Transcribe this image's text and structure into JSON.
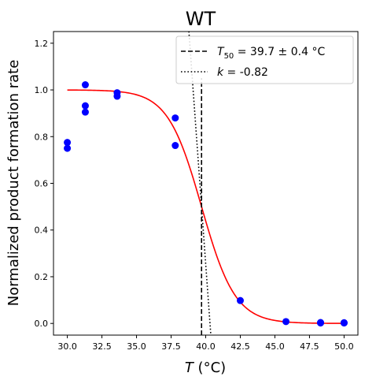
{
  "chart_data": {
    "type": "scatter",
    "title": "WT",
    "xlabel": {
      "italic": "T",
      "rest": " (°C)"
    },
    "ylabel": "Normalized product formation rate",
    "xlim": [
      29.0,
      51.0
    ],
    "ylim": [
      -0.05,
      1.25
    ],
    "xticks": [
      30.0,
      32.5,
      35.0,
      37.5,
      40.0,
      42.5,
      45.0,
      47.5,
      50.0
    ],
    "xtick_labels": [
      "30.0",
      "32.5",
      "35.0",
      "37.5",
      "40.0",
      "42.5",
      "45.0",
      "47.5",
      "50.0"
    ],
    "yticks": [
      0.0,
      0.2,
      0.4,
      0.6,
      0.8,
      1.0,
      1.2
    ],
    "ytick_labels": [
      "0.0",
      "0.2",
      "0.4",
      "0.6",
      "0.8",
      "1.0",
      "1.2"
    ],
    "grid": false,
    "legend_position": "top-right",
    "points": {
      "color": "#0000ff",
      "x": [
        30.0,
        30.0,
        31.3,
        31.3,
        31.3,
        33.6,
        33.6,
        37.8,
        37.8,
        42.5,
        45.8,
        48.3,
        48.3,
        50.0,
        50.0
      ],
      "y": [
        0.775,
        0.75,
        1.022,
        0.932,
        0.905,
        0.988,
        0.973,
        0.88,
        0.762,
        0.098,
        0.008,
        0.004,
        0.002,
        0.003,
        0.002
      ]
    },
    "fit_curve": {
      "color": "#ff0000",
      "type": "sigmoid",
      "T50": 39.7,
      "slope": 0.82,
      "x_range": [
        30.0,
        50.0
      ]
    },
    "legend": [
      {
        "style": "dashed",
        "math_main": "T",
        "math_sub": "50",
        "text": " = 39.7 ± 0.4 °C",
        "x": 39.7,
        "y_range": [
          -0.05,
          1.05
        ]
      },
      {
        "style": "dotted",
        "math_main": "k",
        "math_sub": "",
        "text": " = -0.82",
        "slope": -0.82,
        "x0": 39.7,
        "y0": 0.5
      }
    ]
  }
}
